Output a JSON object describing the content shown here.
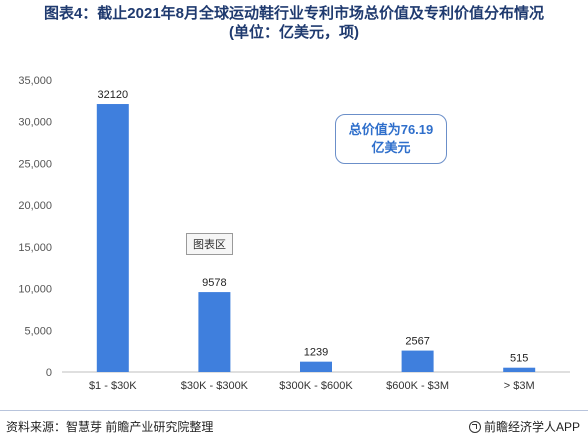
{
  "title": {
    "line1": "图表4：截止2021年8月全球运动鞋行业专利市场总价值及专利价值分布情况",
    "line2": "(单位：亿美元，项)"
  },
  "callout": {
    "line1": "总价值为76.19",
    "line2": "亿美元"
  },
  "legend_label": "图表区",
  "footer": {
    "source": "资料来源：智慧芽 前瞻产业研究院整理",
    "brand": "前瞻经济学人APP"
  },
  "colors": {
    "bar": "#3f7fdd",
    "title": "#1f3a6f",
    "callout_border": "#6b8fc9",
    "callout_text": "#2f6fcb"
  },
  "chart_data": {
    "type": "bar",
    "title": "图表4：截止2021年8月全球运动鞋行业专利市场总价值及专利价值分布情况",
    "subtitle": "(单位：亿美元，项)",
    "categories": [
      "$1 - $30K",
      "$30K - $300K",
      "$300K - $600K",
      "$600K - $3M",
      "> $3M"
    ],
    "values": [
      32120,
      9578,
      1239,
      2567,
      515
    ],
    "data_labels": [
      "32120",
      "9578",
      "1239",
      "2567",
      "515"
    ],
    "y_ticks": [
      "0",
      "5,000",
      "10,000",
      "15,000",
      "20,000",
      "25,000",
      "30,000",
      "35,000"
    ],
    "ylim": [
      0,
      35000
    ],
    "xlabel": "",
    "ylabel": "",
    "grid": false,
    "legend": "none"
  }
}
